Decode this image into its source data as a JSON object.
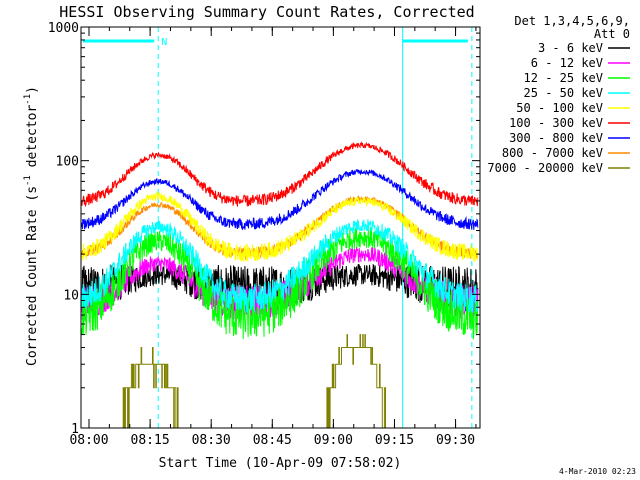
{
  "chart_data": {
    "type": "line",
    "title": "HESSI Observing Summary Count Rates, Corrected",
    "xlabel": "Start Time (10-Apr-09 07:58:02)",
    "ylabel": "Corrected Count Rate (s⁻¹ detector⁻¹)",
    "ylabel_parts": {
      "prefix": "Corrected Count Rate (s",
      "exp": "-1",
      "mid": " detector",
      "suffix": ")"
    },
    "y_scale": "log",
    "ylim": [
      1,
      1000
    ],
    "xlim": [
      "07:58:02",
      "09:36:00"
    ],
    "x_ticks": [
      "08:00",
      "08:15",
      "08:30",
      "08:45",
      "09:00",
      "09:15",
      "09:30"
    ],
    "y_ticks": [
      "1",
      "10",
      "100",
      "1000"
    ],
    "legend_title": [
      "Det 1,3,4,5,6,9,",
      "Att 0"
    ],
    "legend_position": "right",
    "timestamp": "4-Mar-2010 02:23",
    "flags": {
      "label": "N",
      "bars": [
        {
          "start": "07:58:02",
          "end": "08:17:00"
        },
        {
          "start": "09:17:00",
          "end": "09:34:00"
        }
      ]
    },
    "vertical_lines": [
      {
        "time": "08:17:00",
        "style": "dashed"
      },
      {
        "time": "09:17:00",
        "style": "solid"
      },
      {
        "time": "09:34:00",
        "style": "dashed"
      }
    ],
    "series": [
      {
        "name": "3 - 6 keV",
        "color": "#000000",
        "amp": [
          11,
          14,
          14
        ],
        "noise": 0.08,
        "shape": "wide"
      },
      {
        "name": "6 - 12 keV",
        "color": "#ff00ff",
        "amp": [
          8.5,
          17,
          20
        ],
        "noise": 0.06,
        "shape": "normal"
      },
      {
        "name": "12 - 25 keV",
        "color": "#00ff00",
        "amp": [
          6.5,
          25,
          27
        ],
        "noise": 0.08,
        "shape": "normal"
      },
      {
        "name": "25 - 50 keV",
        "color": "#00ffff",
        "amp": [
          9,
          32,
          33
        ],
        "noise": 0.05,
        "shape": "normal"
      },
      {
        "name": "50 - 100 keV",
        "color": "#ffff00",
        "amp": [
          20,
          54,
          50
        ],
        "noise": 0.03,
        "shape": "normal"
      },
      {
        "name": "100 - 300 keV",
        "color": "#ff0000",
        "amp": [
          49,
          110,
          130
        ],
        "noise": 0.02,
        "shape": "normal"
      },
      {
        "name": "300 - 800 keV",
        "color": "#0000ff",
        "amp": [
          33,
          70,
          83
        ],
        "noise": 0.02,
        "shape": "normal"
      },
      {
        "name": "800 - 7000 keV",
        "color": "#ff8c00",
        "amp": [
          20,
          47,
          52
        ],
        "noise": 0.02,
        "shape": "normal"
      },
      {
        "name": "7000 - 20000 keV",
        "color": "#808000",
        "amp": [
          1,
          3,
          4
        ],
        "noise": 0.0,
        "shape": "step"
      }
    ]
  }
}
